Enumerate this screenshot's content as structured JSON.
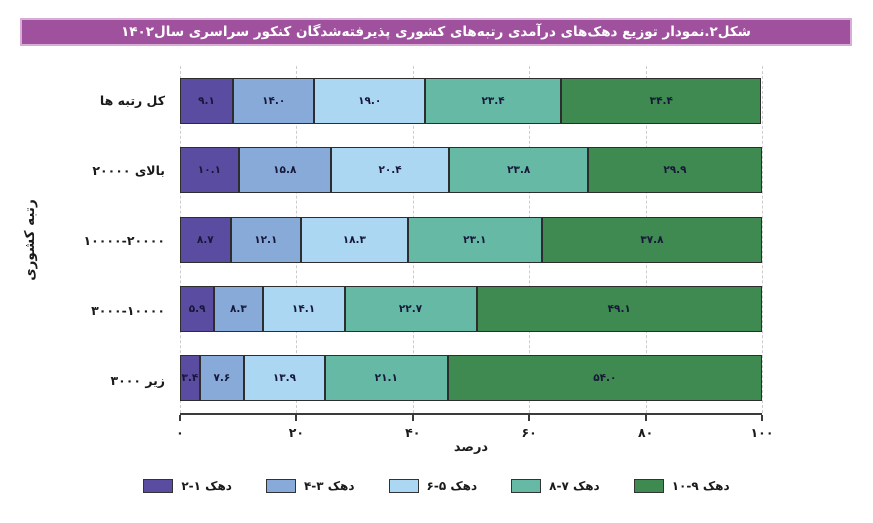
{
  "figure": {
    "title": "شکل۲.نمودار توزیع دهک‌های درآمدی رتبه‌های کشوری پذیرفته‌شدگان کنکور سراسری سال۱۴۰۲"
  },
  "chart_data": {
    "type": "bar",
    "stacked": true,
    "orientation": "horizontal",
    "title": "شکل۲.نمودار توزیع دهک‌های درآمدی رتبه‌های کشوری پذیرفته‌شدگان کنکور سراسری سال۱۴۰۲",
    "xlabel": "درصد",
    "ylabel": "رتبه کشوری",
    "xlim": [
      0,
      100
    ],
    "x_tick_values": [
      0,
      20,
      40,
      60,
      80,
      100
    ],
    "x_tick_labels": [
      "۰",
      "۲۰",
      "۴۰",
      "۶۰",
      "۸۰",
      "۱۰۰"
    ],
    "grid": "vertical-dashed",
    "legend_position": "bottom-center",
    "categories": [
      "کل رتبه ها",
      "بالای ۲۰۰۰۰",
      "۱۰۰۰۰-۲۰۰۰۰",
      "۳۰۰۰-۱۰۰۰۰",
      "زیر ۳۰۰۰"
    ],
    "series": [
      {
        "name": "دهک ۱-۲",
        "color": "#5A4DA1",
        "values": [
          9.1,
          10.1,
          8.7,
          5.9,
          3.4
        ],
        "labels": [
          "۹.۱",
          "۱۰.۱",
          "۸.۷",
          "۵.۹",
          "۳.۴"
        ]
      },
      {
        "name": "دهک ۳-۴",
        "color": "#87AAD8",
        "values": [
          14.0,
          15.8,
          12.1,
          8.3,
          7.6
        ],
        "labels": [
          "۱۴.۰",
          "۱۵.۸",
          "۱۲.۱",
          "۸.۳",
          "۷.۶"
        ]
      },
      {
        "name": "دهک ۵-۶",
        "color": "#ABD7F2",
        "values": [
          19.0,
          20.4,
          18.3,
          14.1,
          13.9
        ],
        "labels": [
          "۱۹.۰",
          "۲۰.۴",
          "۱۸.۳",
          "۱۴.۱",
          "۱۳.۹"
        ]
      },
      {
        "name": "دهک ۷-۸",
        "color": "#66BAA5",
        "values": [
          23.4,
          23.8,
          23.1,
          22.7,
          21.1
        ],
        "labels": [
          "۲۳.۴",
          "۲۳.۸",
          "۲۳.۱",
          "۲۲.۷",
          "۲۱.۱"
        ]
      },
      {
        "name": "دهک ۹-۱۰",
        "color": "#3E8A50",
        "values": [
          34.4,
          29.9,
          37.8,
          49.1,
          54.0
        ],
        "labels": [
          "۳۴.۴",
          "۲۹.۹",
          "۳۷.۸",
          "۴۹.۱",
          "۵۴.۰"
        ]
      }
    ]
  },
  "colors": {
    "title_bg": "#A0519E",
    "title_border": "#D9ACD8",
    "axis": "#3b3b3b",
    "grid": "#cccccc",
    "value_text": "#17173a",
    "segment_border": "#2d2d2d"
  }
}
